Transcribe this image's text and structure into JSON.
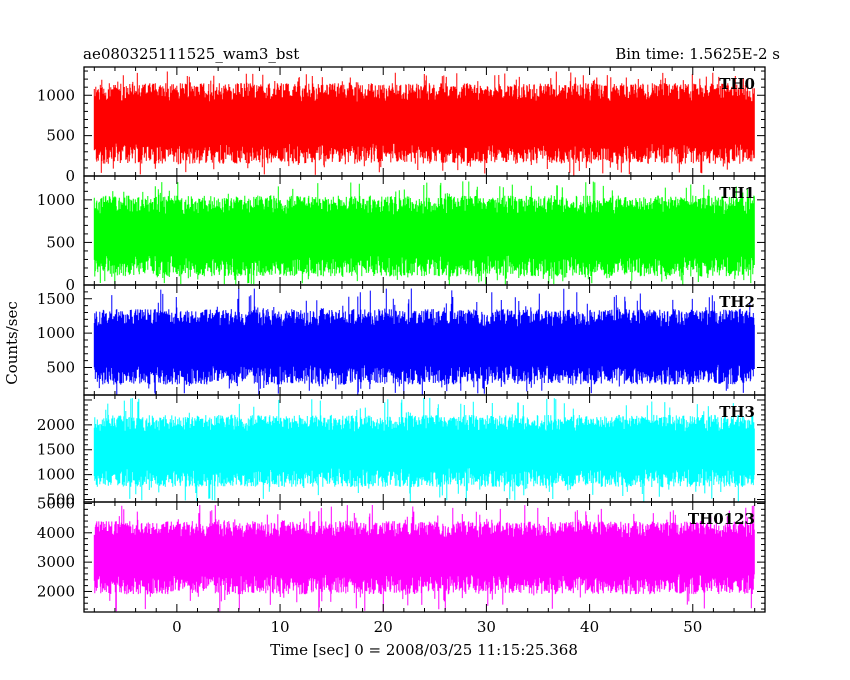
{
  "chart_data": {
    "type": "line",
    "title": "ae080325111525_wam3_bst",
    "subtitle": "Bin time: 1.5625E-2 s",
    "xlabel": "Time [sec] 0 = 2008/03/25 11:15:25.368",
    "ylabel": "Counts/sec",
    "xlim": [
      -9,
      57
    ],
    "x_ticks": [
      0,
      10,
      20,
      30,
      40,
      50
    ],
    "x_range_data": [
      -8,
      56
    ],
    "grid": false,
    "panels": [
      {
        "name": "TH0",
        "color": "#ff0000",
        "ylim": [
          0,
          1350
        ],
        "y_ticks": [
          0,
          500,
          1000
        ],
        "mean": 620,
        "low": 150,
        "high": 1150,
        "spike_max": 1300
      },
      {
        "name": "TH1",
        "color": "#00ff00",
        "ylim": [
          0,
          1280
        ],
        "y_ticks": [
          0,
          500,
          1000
        ],
        "mean": 550,
        "low": 100,
        "high": 1050,
        "spike_max": 1220
      },
      {
        "name": "TH2",
        "color": "#0000ff",
        "ylim": [
          100,
          1700
        ],
        "y_ticks": [
          500,
          1000,
          1500
        ],
        "mean": 780,
        "low": 250,
        "high": 1350,
        "spike_max": 1650
      },
      {
        "name": "TH3",
        "color": "#00ffff",
        "ylim": [
          450,
          2600
        ],
        "y_ticks": [
          500,
          1000,
          1500,
          2000
        ],
        "mean": 1450,
        "low": 750,
        "high": 2200,
        "spike_max": 2550
      },
      {
        "name": "TH0123",
        "color": "#ff00ff",
        "ylim": [
          1300,
          5050
        ],
        "y_ticks": [
          2000,
          3000,
          4000,
          5000
        ],
        "mean": 3150,
        "low": 1900,
        "high": 4400,
        "spike_max": 4950
      }
    ]
  }
}
